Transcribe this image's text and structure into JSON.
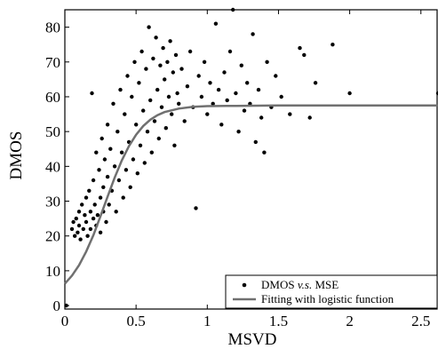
{
  "chart_data": {
    "type": "scatter",
    "xlabel": "MSVD",
    "ylabel": "DMOS",
    "xlim": [
      0,
      2.62
    ],
    "ylim": [
      -1,
      85
    ],
    "xticks": [
      "0",
      "0.5",
      "1",
      "1.5",
      "2",
      "2.5"
    ],
    "xtick_values": [
      0,
      0.5,
      1,
      1.5,
      2,
      2.5
    ],
    "yticks": [
      "0",
      "10",
      "20",
      "30",
      "40",
      "50",
      "60",
      "70",
      "80"
    ],
    "ytick_values": [
      0,
      10,
      20,
      30,
      40,
      50,
      60,
      70,
      80
    ],
    "grid": false,
    "legend_position": "bottom-right",
    "series": [
      {
        "name": "DMOS v.s. MSE",
        "name_parts": [
          "DMOS ",
          "v.s.",
          " MSE"
        ],
        "kind": "scatter",
        "color": "#000000",
        "sampled_points": [
          [
            0.01,
            0.0
          ],
          [
            0.05,
            22
          ],
          [
            0.06,
            24
          ],
          [
            0.07,
            20
          ],
          [
            0.08,
            25
          ],
          [
            0.09,
            21
          ],
          [
            0.1,
            27
          ],
          [
            0.1,
            23
          ],
          [
            0.11,
            19
          ],
          [
            0.12,
            29
          ],
          [
            0.13,
            22
          ],
          [
            0.14,
            26
          ],
          [
            0.15,
            31
          ],
          [
            0.15,
            24
          ],
          [
            0.16,
            20
          ],
          [
            0.17,
            33
          ],
          [
            0.18,
            27
          ],
          [
            0.18,
            22
          ],
          [
            0.19,
            61
          ],
          [
            0.2,
            25
          ],
          [
            0.2,
            36
          ],
          [
            0.21,
            29
          ],
          [
            0.22,
            23
          ],
          [
            0.22,
            44
          ],
          [
            0.23,
            26
          ],
          [
            0.24,
            39
          ],
          [
            0.25,
            31
          ],
          [
            0.25,
            21
          ],
          [
            0.26,
            48
          ],
          [
            0.27,
            34
          ],
          [
            0.27,
            27
          ],
          [
            0.28,
            42
          ],
          [
            0.29,
            24
          ],
          [
            0.3,
            37
          ],
          [
            0.3,
            52
          ],
          [
            0.31,
            29
          ],
          [
            0.32,
            45
          ],
          [
            0.33,
            33
          ],
          [
            0.34,
            58
          ],
          [
            0.35,
            40
          ],
          [
            0.36,
            27
          ],
          [
            0.37,
            50
          ],
          [
            0.38,
            36
          ],
          [
            0.39,
            62
          ],
          [
            0.4,
            44
          ],
          [
            0.41,
            31
          ],
          [
            0.42,
            55
          ],
          [
            0.43,
            39
          ],
          [
            0.44,
            66
          ],
          [
            0.45,
            47
          ],
          [
            0.46,
            34
          ],
          [
            0.47,
            60
          ],
          [
            0.48,
            42
          ],
          [
            0.49,
            70
          ],
          [
            0.5,
            52
          ],
          [
            0.51,
            38
          ],
          [
            0.52,
            64
          ],
          [
            0.53,
            46
          ],
          [
            0.54,
            73
          ],
          [
            0.55,
            56
          ],
          [
            0.56,
            41
          ],
          [
            0.57,
            68
          ],
          [
            0.58,
            50
          ],
          [
            0.59,
            80
          ],
          [
            0.6,
            59
          ],
          [
            0.61,
            44
          ],
          [
            0.62,
            71
          ],
          [
            0.63,
            53
          ],
          [
            0.64,
            77
          ],
          [
            0.65,
            62
          ],
          [
            0.66,
            48
          ],
          [
            0.67,
            69
          ],
          [
            0.68,
            57
          ],
          [
            0.69,
            74
          ],
          [
            0.7,
            65
          ],
          [
            0.71,
            51
          ],
          [
            0.72,
            70
          ],
          [
            0.73,
            60
          ],
          [
            0.74,
            76
          ],
          [
            0.75,
            55
          ],
          [
            0.76,
            67
          ],
          [
            0.77,
            46
          ],
          [
            0.78,
            72
          ],
          [
            0.79,
            61
          ],
          [
            0.8,
            58
          ],
          [
            0.82,
            68
          ],
          [
            0.84,
            53
          ],
          [
            0.86,
            63
          ],
          [
            0.88,
            73
          ],
          [
            0.9,
            57
          ],
          [
            0.92,
            28
          ],
          [
            0.94,
            66
          ],
          [
            0.96,
            60
          ],
          [
            0.98,
            70
          ],
          [
            1.0,
            55
          ],
          [
            1.02,
            64
          ],
          [
            1.04,
            58
          ],
          [
            1.06,
            81
          ],
          [
            1.08,
            62
          ],
          [
            1.1,
            52
          ],
          [
            1.12,
            67
          ],
          [
            1.14,
            59
          ],
          [
            1.16,
            73
          ],
          [
            1.18,
            85
          ],
          [
            1.2,
            61
          ],
          [
            1.22,
            50
          ],
          [
            1.24,
            69
          ],
          [
            1.26,
            56
          ],
          [
            1.28,
            64
          ],
          [
            1.3,
            58
          ],
          [
            1.32,
            78
          ],
          [
            1.34,
            47
          ],
          [
            1.36,
            62
          ],
          [
            1.38,
            54
          ],
          [
            1.4,
            44
          ],
          [
            1.42,
            70
          ],
          [
            1.45,
            57
          ],
          [
            1.48,
            66
          ],
          [
            1.52,
            60
          ],
          [
            1.58,
            55
          ],
          [
            1.65,
            74
          ],
          [
            1.68,
            72
          ],
          [
            1.72,
            54
          ],
          [
            1.76,
            64
          ],
          [
            1.88,
            75
          ],
          [
            2.0,
            61
          ],
          [
            2.62,
            61
          ]
        ]
      },
      {
        "name": "Fitting with logistic function",
        "kind": "line",
        "color": "#707070",
        "curve_points": [
          [
            0,
            6.3
          ],
          [
            0.05,
            8.6
          ],
          [
            0.1,
            11.6
          ],
          [
            0.15,
            15.5
          ],
          [
            0.2,
            20.2
          ],
          [
            0.25,
            25.7
          ],
          [
            0.3,
            31.3
          ],
          [
            0.35,
            36.8
          ],
          [
            0.4,
            41.7
          ],
          [
            0.45,
            45.8
          ],
          [
            0.5,
            49.1
          ],
          [
            0.55,
            51.6
          ],
          [
            0.6,
            53.4
          ],
          [
            0.65,
            54.7
          ],
          [
            0.7,
            55.6
          ],
          [
            0.8,
            56.6
          ],
          [
            0.9,
            57.1
          ],
          [
            1.0,
            57.3
          ],
          [
            1.2,
            57.4
          ],
          [
            1.5,
            57.5
          ],
          [
            2.0,
            57.5
          ],
          [
            2.62,
            57.5
          ]
        ]
      }
    ]
  }
}
